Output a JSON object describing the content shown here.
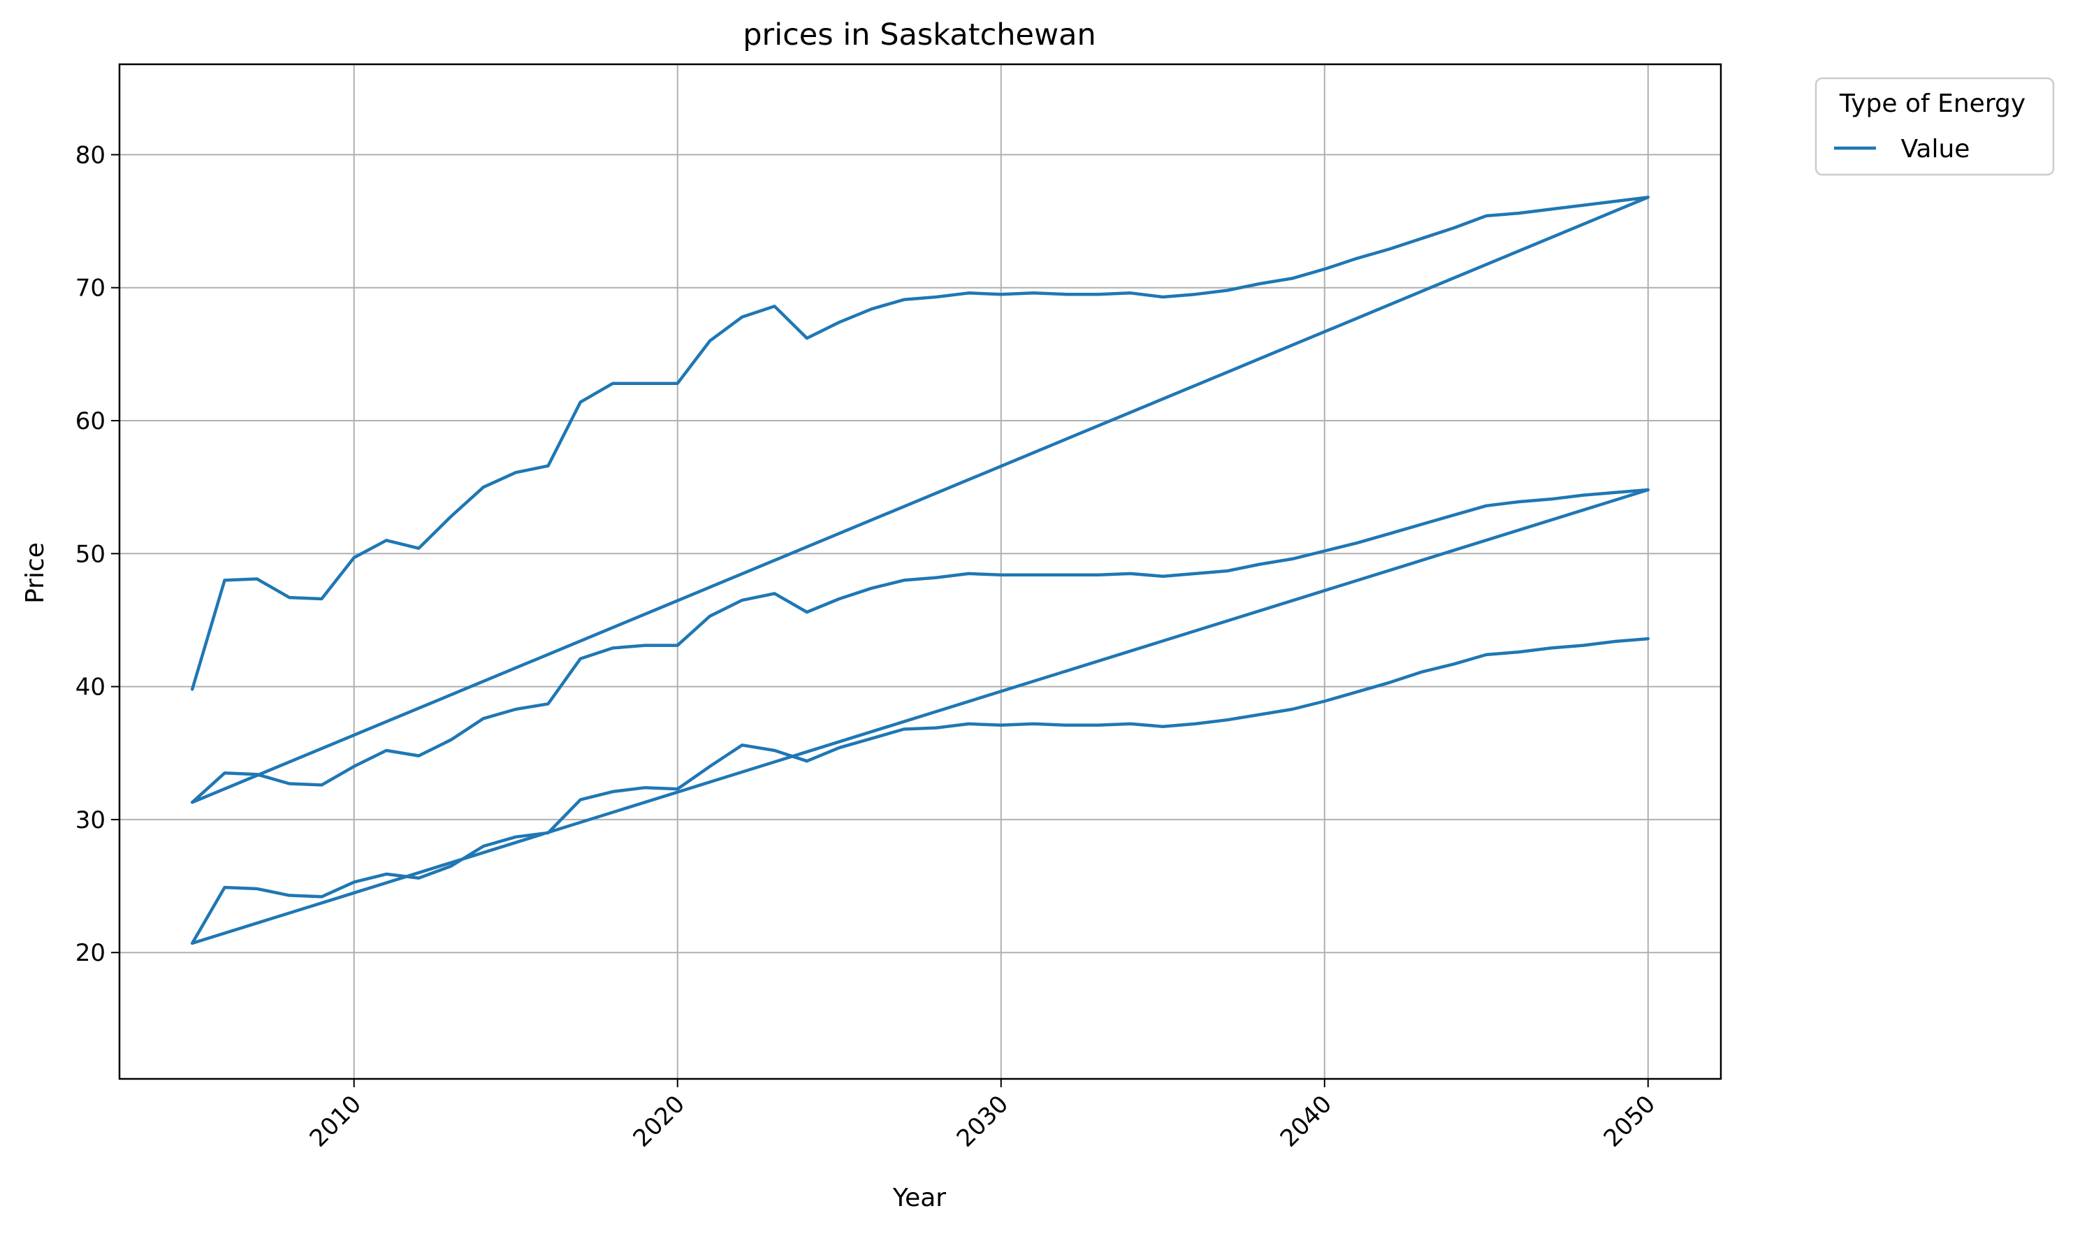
{
  "chart_data": {
    "type": "line",
    "title": "prices in Saskatchewan",
    "xlabel": "Year",
    "ylabel": "Price",
    "xlim": [
      2002.75,
      2052.25
    ],
    "ylim": [
      10.5,
      86.8
    ],
    "xticks": [
      "2010",
      "2020",
      "2030",
      "2040",
      "2050"
    ],
    "xtick_values": [
      2010,
      2020,
      2030,
      2040,
      2050
    ],
    "yticks": [
      "20",
      "30",
      "40",
      "50",
      "60",
      "70",
      "80"
    ],
    "ytick_values": [
      20,
      30,
      40,
      50,
      60,
      70,
      80
    ],
    "xtick_rotation_deg": -45,
    "grid": true,
    "legend": {
      "title": "Type of Energy",
      "placement": "outside-top-right",
      "entries": [
        "Value"
      ]
    },
    "series": [
      {
        "name": "Value",
        "color": "#1f77b4",
        "x": [
          2005,
          2006,
          2007,
          2008,
          2009,
          2010,
          2011,
          2012,
          2013,
          2014,
          2015,
          2016,
          2017,
          2018,
          2019,
          2020,
          2021,
          2022,
          2023,
          2024,
          2025,
          2026,
          2027,
          2028,
          2029,
          2030,
          2031,
          2032,
          2033,
          2034,
          2035,
          2036,
          2037,
          2038,
          2039,
          2040,
          2041,
          2042,
          2043,
          2044,
          2045,
          2046,
          2047,
          2048,
          2049,
          2050,
          2005,
          2006,
          2007,
          2008,
          2009,
          2010,
          2011,
          2012,
          2013,
          2014,
          2015,
          2016,
          2017,
          2018,
          2019,
          2020,
          2021,
          2022,
          2023,
          2024,
          2025,
          2026,
          2027,
          2028,
          2029,
          2030,
          2031,
          2032,
          2033,
          2034,
          2035,
          2036,
          2037,
          2038,
          2039,
          2040,
          2041,
          2042,
          2043,
          2044,
          2045,
          2046,
          2047,
          2048,
          2049,
          2050,
          2005,
          2006,
          2007,
          2008,
          2009,
          2010,
          2011,
          2012,
          2013,
          2014,
          2015,
          2016,
          2017,
          2018,
          2019,
          2020,
          2021,
          2022,
          2023,
          2024,
          2025,
          2026,
          2027,
          2028,
          2029,
          2030,
          2031,
          2032,
          2033,
          2034,
          2035,
          2036,
          2037,
          2038,
          2039,
          2040,
          2041,
          2042,
          2043,
          2044,
          2045,
          2046,
          2047,
          2048,
          2049,
          2050
        ],
        "y": [
          39.8,
          48.0,
          48.1,
          46.7,
          46.6,
          49.7,
          51.0,
          50.4,
          52.8,
          55.0,
          56.1,
          56.6,
          61.4,
          62.8,
          62.8,
          62.8,
          66.0,
          67.8,
          68.6,
          66.2,
          67.4,
          68.4,
          69.1,
          69.3,
          69.6,
          69.5,
          69.6,
          69.5,
          69.5,
          69.6,
          69.3,
          69.5,
          69.8,
          70.3,
          70.7,
          71.4,
          72.2,
          72.9,
          73.7,
          74.5,
          75.4,
          75.6,
          75.9,
          76.2,
          76.5,
          76.8,
          31.3,
          33.5,
          33.4,
          32.7,
          32.6,
          34.0,
          35.2,
          34.8,
          36.0,
          37.6,
          38.3,
          38.7,
          42.1,
          42.9,
          43.1,
          43.1,
          45.3,
          46.5,
          47.0,
          45.6,
          46.6,
          47.4,
          48.0,
          48.2,
          48.5,
          48.4,
          48.4,
          48.4,
          48.4,
          48.5,
          48.3,
          48.5,
          48.7,
          49.2,
          49.6,
          50.2,
          50.8,
          51.5,
          52.2,
          52.9,
          53.6,
          53.9,
          54.1,
          54.4,
          54.6,
          54.8,
          20.7,
          24.9,
          24.8,
          24.3,
          24.2,
          25.3,
          25.9,
          25.6,
          26.5,
          28.0,
          28.7,
          29.0,
          31.5,
          32.1,
          32.4,
          32.3,
          34.0,
          35.6,
          35.2,
          34.4,
          35.4,
          36.1,
          36.8,
          36.9,
          37.2,
          37.1,
          37.2,
          37.1,
          37.1,
          37.2,
          37.0,
          37.2,
          37.5,
          37.9,
          38.3,
          38.9,
          39.6,
          40.3,
          41.1,
          41.7,
          42.4,
          42.6,
          42.9,
          43.1,
          43.4,
          43.6
        ]
      }
    ]
  }
}
